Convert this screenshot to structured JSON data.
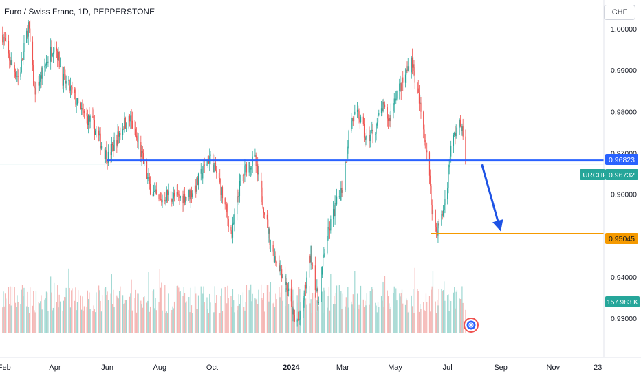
{
  "header": {
    "title": "Euro / Swiss Franc, 1D, PEPPERSTONE",
    "currency_button": "CHF"
  },
  "badges": {
    "blue_line": "0.96823",
    "symbol": "EURCHF",
    "last_price": "0.96732",
    "orange_line": "0.95045",
    "volume": "157.983 K"
  },
  "colors": {
    "up": "#26a69a",
    "down": "#ef5350",
    "up_volume": "#9fd8d2",
    "down_volume": "#f5b6b4",
    "blue_line": "#2962ff",
    "orange_line": "#f59a00",
    "arrow": "#1e53e5",
    "badge_symbol": "#26a69a",
    "axis_text": "#131722"
  },
  "chart_data": {
    "type": "candlestick",
    "title": "Euro / Swiss Franc, 1D, PEPPERSTONE",
    "y_ticks": [
      "1.00000",
      "0.99000",
      "0.98000",
      "0.97000",
      "0.96000",
      "0.95000",
      "0.94000",
      "0.93000"
    ],
    "y_tick_values": [
      1.0,
      0.99,
      0.98,
      0.97,
      0.96,
      0.95,
      0.94,
      0.93
    ],
    "ylim": [
      0.9205,
      1.007
    ],
    "x_ticks": [
      "Feb",
      "Apr",
      "Jun",
      "Aug",
      "Oct",
      "2024",
      "Mar",
      "May",
      "Jul",
      "Sep",
      "Nov",
      "23"
    ],
    "x_tick_dates": [
      "2023-02-01",
      "2023-04-01",
      "2023-06-01",
      "2023-08-01",
      "2023-10-01",
      "2024-01-01",
      "2024-03-01",
      "2024-05-01",
      "2024-07-01",
      "2024-09-01",
      "2024-11-01",
      "2024-12-23"
    ],
    "x_range": [
      "2023-01-27",
      "2024-12-30"
    ],
    "price_path_dates": [
      "2023-01-28",
      "2023-02-08",
      "2023-02-18",
      "2023-03-01",
      "2023-03-08",
      "2023-03-15",
      "2023-03-22",
      "2023-04-01",
      "2023-04-10",
      "2023-04-20",
      "2023-05-01",
      "2023-05-15",
      "2023-05-29",
      "2023-06-02",
      "2023-06-20",
      "2023-06-28",
      "2023-07-10",
      "2023-07-20",
      "2023-07-31",
      "2023-08-10",
      "2023-08-22",
      "2023-09-05",
      "2023-09-12",
      "2023-09-28",
      "2023-10-08",
      "2023-10-16",
      "2023-10-24",
      "2023-11-01",
      "2023-11-10",
      "2023-11-20",
      "2023-12-01",
      "2023-12-10",
      "2023-12-20",
      "2023-12-28",
      "2024-01-05",
      "2024-01-12",
      "2024-01-24",
      "2024-02-01",
      "2024-02-10",
      "2024-02-20",
      "2024-03-01",
      "2024-03-10",
      "2024-03-20",
      "2024-03-28",
      "2024-04-08",
      "2024-04-16",
      "2024-04-24",
      "2024-05-01",
      "2024-05-10",
      "2024-05-20",
      "2024-05-25",
      "2024-06-03",
      "2024-06-08",
      "2024-06-12",
      "2024-06-18",
      "2024-06-24",
      "2024-06-30",
      "2024-07-04",
      "2024-07-10",
      "2024-07-17",
      "2024-07-22"
    ],
    "price_path_values": [
      1.0,
      0.992,
      0.988,
      1.001,
      0.985,
      0.988,
      0.992,
      0.997,
      0.988,
      0.985,
      0.98,
      0.977,
      0.97,
      0.969,
      0.977,
      0.978,
      0.97,
      0.962,
      0.958,
      0.96,
      0.959,
      0.96,
      0.962,
      0.969,
      0.964,
      0.957,
      0.95,
      0.961,
      0.967,
      0.968,
      0.956,
      0.946,
      0.942,
      0.937,
      0.929,
      0.93,
      0.946,
      0.934,
      0.948,
      0.956,
      0.962,
      0.978,
      0.979,
      0.973,
      0.976,
      0.981,
      0.978,
      0.984,
      0.987,
      0.993,
      0.987,
      0.976,
      0.969,
      0.958,
      0.951,
      0.954,
      0.961,
      0.97,
      0.975,
      0.977,
      0.9673
    ],
    "blue_line": {
      "value": 0.96823,
      "from": "2023-05-31"
    },
    "orange_line": {
      "value": 0.95045,
      "from": "2024-06-12"
    },
    "arrow": {
      "from_date": "2024-08-10",
      "from_value": 0.9672,
      "to_date": "2024-09-01",
      "to_value": 0.951
    },
    "volume_last": "157.983 K",
    "grid": false,
    "legend": "none"
  }
}
